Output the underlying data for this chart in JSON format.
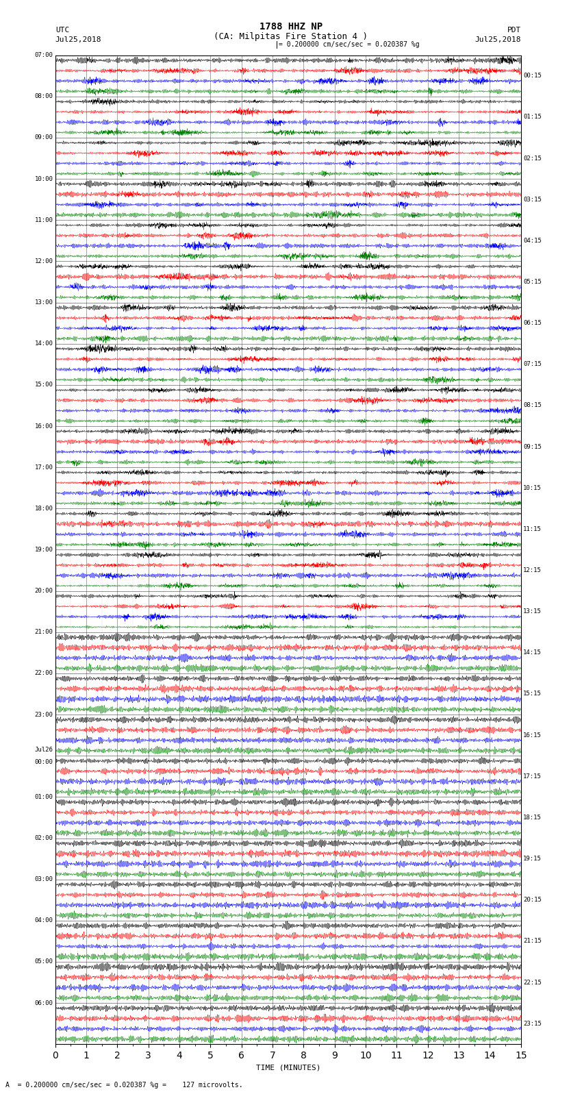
{
  "title_line1": "1788 HHZ NP",
  "title_line2": "(CA: Milpitas Fire Station 4 )",
  "scale_text": "= 0.200000 cm/sec/sec = 0.020387 %g",
  "footer_text": "= 0.200000 cm/sec/sec = 0.020387 %g =    127 microvolts.",
  "utc_label": "UTC",
  "pdt_label": "PDT",
  "date_label": "Jul25,2018",
  "date_label_right": "Jul25,2018",
  "xlabel": "TIME (MINUTES)",
  "left_times": [
    "07:00",
    "08:00",
    "09:00",
    "10:00",
    "11:00",
    "12:00",
    "13:00",
    "14:00",
    "15:00",
    "16:00",
    "17:00",
    "18:00",
    "19:00",
    "20:00",
    "21:00",
    "22:00",
    "23:00",
    "Jul26\n00:00",
    "01:00",
    "02:00",
    "03:00",
    "04:00",
    "05:00",
    "06:00"
  ],
  "right_times": [
    "00:15",
    "01:15",
    "02:15",
    "03:15",
    "04:15",
    "05:15",
    "06:15",
    "07:15",
    "08:15",
    "09:15",
    "10:15",
    "11:15",
    "12:15",
    "13:15",
    "14:15",
    "15:15",
    "16:15",
    "17:15",
    "18:15",
    "19:15",
    "20:15",
    "21:15",
    "22:15",
    "23:15"
  ],
  "colors": [
    "black",
    "red",
    "blue",
    "green"
  ],
  "n_rows": 24,
  "n_traces_per_row": 4,
  "minutes": 15,
  "active_rows": 14,
  "background_color": "white",
  "fig_width": 8.5,
  "fig_height": 16.13,
  "dpi": 100
}
